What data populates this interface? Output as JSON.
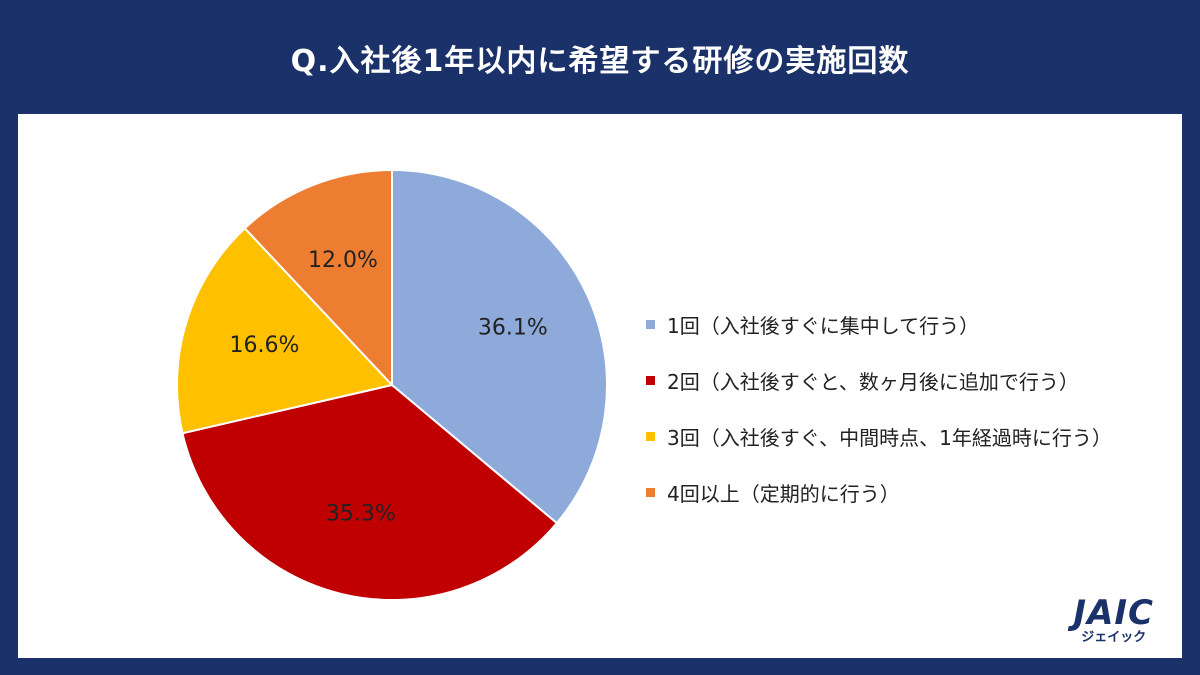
{
  "title": "Q.入社後1年以内に希望する研修の実施回数",
  "chart_data": {
    "type": "pie",
    "slices": [
      {
        "label": "1回（入社後すぐに集中して行う）",
        "value": 36.1,
        "value_label": "36.1%",
        "color": "#8eaadb"
      },
      {
        "label": "2回（入社後すぐと、数ヶ月後に追加で行う）",
        "value": 35.3,
        "value_label": "35.3%",
        "color": "#c00000"
      },
      {
        "label": "3回（入社後すぐ、中間時点、1年経過時に行う）",
        "value": 16.6,
        "value_label": "16.6%",
        "color": "#ffc000"
      },
      {
        "label": "4回以上（定期的に行う）",
        "value": 12.0,
        "value_label": "12.0%",
        "color": "#ed7d31"
      }
    ],
    "start": "12 o'clock",
    "direction": "clockwise",
    "legend": "right"
  },
  "logo": {
    "mark": "JAIC",
    "sub": "ジェイック"
  }
}
